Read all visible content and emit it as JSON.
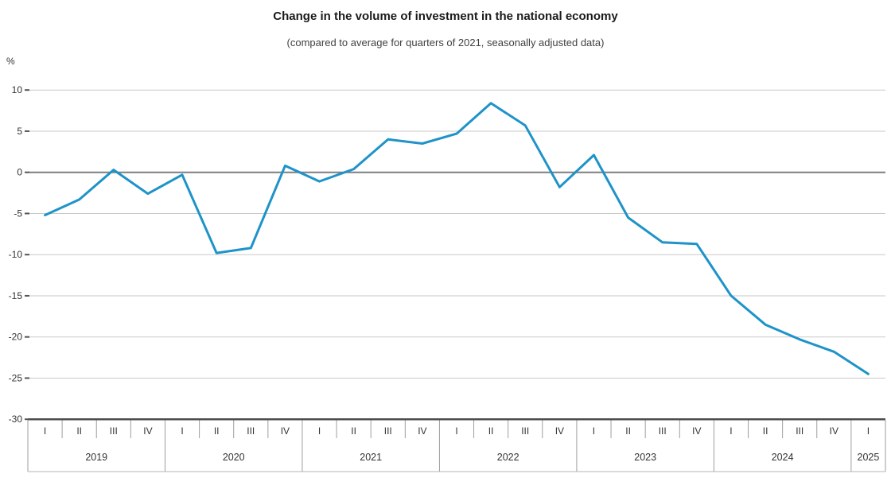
{
  "header": {
    "title": "Change in the volume of investment in the national economy",
    "subtitle": "(compared to average for quarters of 2021, seasonally adjusted data)",
    "unit_label": "%"
  },
  "chart_data": {
    "type": "line",
    "title": "Change in the volume of investment in the national economy",
    "subtitle": "(compared to average for quarters of 2021, seasonally adjusted data)",
    "xlabel": "",
    "ylabel": "%",
    "ylim": [
      -30,
      10
    ],
    "yticks": [
      10,
      5,
      0,
      -5,
      -10,
      -15,
      -20,
      -25,
      -30
    ],
    "grid": true,
    "zero_line_emphasized": true,
    "legend_position": "none",
    "years": [
      {
        "label": "2019",
        "quarters": [
          "I",
          "II",
          "III",
          "IV"
        ]
      },
      {
        "label": "2020",
        "quarters": [
          "I",
          "II",
          "III",
          "IV"
        ]
      },
      {
        "label": "2021",
        "quarters": [
          "I",
          "II",
          "III",
          "IV"
        ]
      },
      {
        "label": "2022",
        "quarters": [
          "I",
          "II",
          "III",
          "IV"
        ]
      },
      {
        "label": "2023",
        "quarters": [
          "I",
          "II",
          "III",
          "IV"
        ]
      },
      {
        "label": "2024",
        "quarters": [
          "I",
          "II",
          "III",
          "IV"
        ]
      },
      {
        "label": "2025",
        "quarters": [
          "I"
        ]
      }
    ],
    "series": [
      {
        "name": "Change in volume of investment, % vs 2021 quarterly average",
        "values": [
          -5.2,
          -3.3,
          0.3,
          -2.6,
          -0.3,
          -9.8,
          -9.2,
          0.8,
          -1.1,
          0.4,
          4.0,
          3.5,
          4.7,
          8.4,
          5.7,
          -1.8,
          2.1,
          -5.5,
          -8.5,
          -8.7,
          -15.0,
          -18.5,
          -20.3,
          -21.8,
          -24.5
        ]
      }
    ],
    "colors": {
      "line": "#1E93C9",
      "grid": "#c9c9c9",
      "zero_line": "#7f7f7f",
      "axis": "#4d4d4d",
      "separator": "#9e9e9e",
      "band_bottom": "#b5b5b5",
      "tick_text": "#333333"
    }
  }
}
